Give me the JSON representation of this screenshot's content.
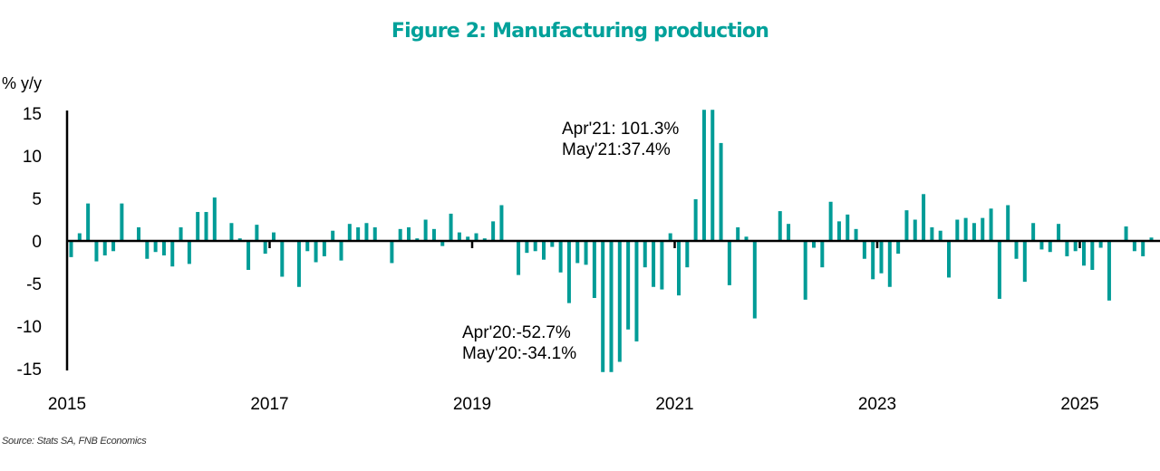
{
  "chart_data": {
    "type": "bar",
    "title": "Figure 2: Manufacturing production",
    "ylabel": "% y/y",
    "xlabel": "",
    "ylim": [
      -15,
      15
    ],
    "yticks": [
      "15",
      "10",
      "5",
      "0",
      "-5",
      "-10",
      "-15"
    ],
    "ytick_values": [
      15,
      10,
      5,
      0,
      -5,
      -10,
      -15
    ],
    "xtick_labels": [
      "2015",
      "2017",
      "2019",
      "2021",
      "2023",
      "2025"
    ],
    "xtick_years": [
      2015,
      2017,
      2019,
      2021,
      2023,
      2025
    ],
    "start": "2015-01",
    "frequency": "monthly",
    "bar_color": "#009C97",
    "title_color": "#00A19A",
    "grid": false,
    "values": [
      -1.9,
      0.9,
      4.4,
      -2.4,
      -1.7,
      -1.2,
      4.4,
      -0.1,
      1.6,
      -2.1,
      -1.3,
      -1.7,
      -3.0,
      1.6,
      -2.7,
      3.4,
      3.4,
      5.1,
      0.1,
      2.1,
      0.3,
      -3.4,
      1.9,
      -1.5,
      1.0,
      -4.2,
      0.0,
      -5.4,
      -1.2,
      -2.5,
      -1.8,
      1.2,
      -2.3,
      2.0,
      1.6,
      2.1,
      1.6,
      0.1,
      -2.6,
      1.4,
      1.6,
      0.3,
      2.5,
      1.4,
      -0.6,
      3.2,
      1.0,
      0.5,
      0.9,
      0.3,
      2.3,
      4.2,
      0.1,
      -4.0,
      -1.4,
      -1.2,
      -2.2,
      -0.7,
      -3.7,
      -7.3,
      -2.6,
      -2.8,
      -6.7,
      -52.7,
      -34.1,
      -14.2,
      -10.4,
      -11.8,
      -3.1,
      -5.4,
      -5.7,
      0.9,
      -6.4,
      -3.1,
      4.9,
      101.3,
      37.4,
      11.5,
      -5.2,
      1.6,
      0.5,
      -9.1,
      0.1,
      0.0,
      3.5,
      2.0,
      0.1,
      -6.9,
      -0.8,
      -3.1,
      4.6,
      2.3,
      3.1,
      1.4,
      -2.1,
      -4.5,
      -3.8,
      -5.4,
      -1.5,
      3.6,
      2.5,
      5.5,
      1.6,
      1.2,
      -4.3,
      2.5,
      2.7,
      2.1,
      2.7,
      3.8,
      -6.8,
      4.2,
      -2.1,
      -4.8,
      2.1,
      -1.0,
      -1.3,
      2.0,
      -1.8,
      -1.2,
      -2.9,
      -3.4,
      -0.8,
      -7.0,
      0.1,
      1.7,
      -1.2,
      -1.8,
      0.4
    ],
    "annotations": [
      {
        "lines": [
          "Apr'21: 101.3%",
          "May'21:37.4%"
        ],
        "anchor": "Apr'21"
      },
      {
        "lines": [
          "Apr'20:-52.7%",
          "May'20:-34.1%"
        ],
        "anchor": "Apr'20"
      }
    ],
    "source": "Source: Stats SA, FNB Economics"
  }
}
